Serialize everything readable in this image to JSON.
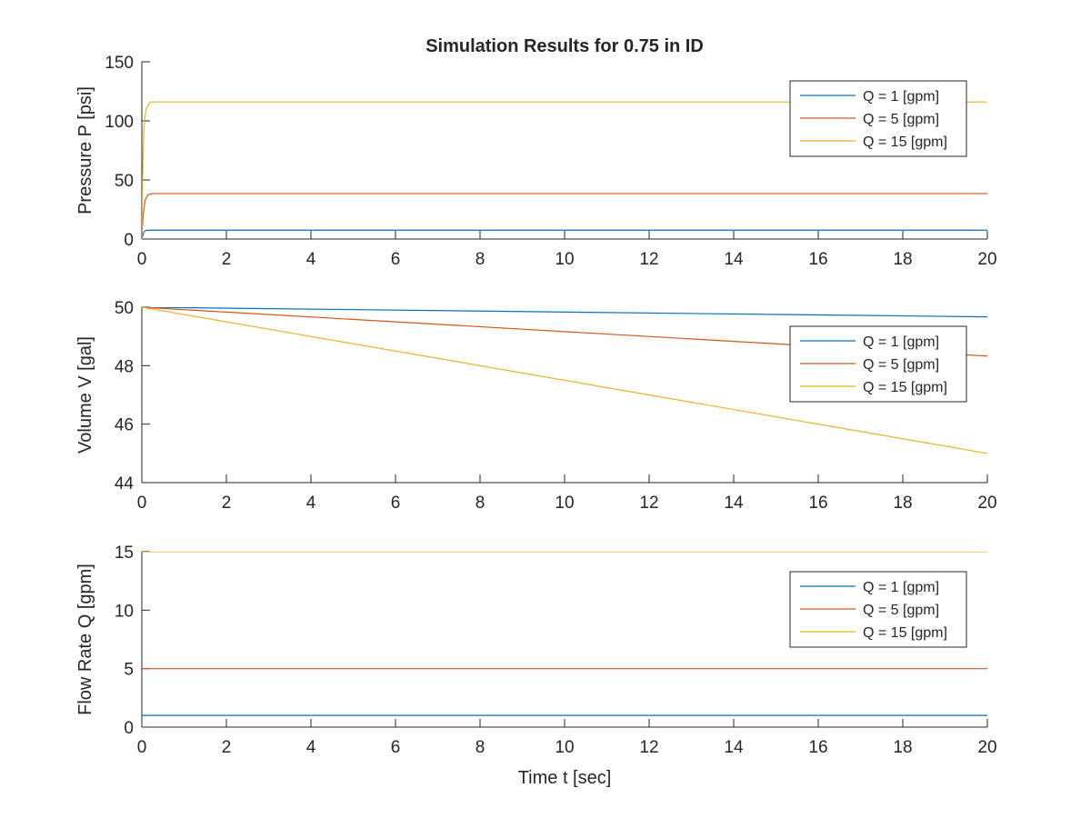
{
  "figure": {
    "title": "Simulation Results for 0.75 in ID"
  },
  "chart_data": [
    {
      "type": "line",
      "title": "Simulation Results for 0.75 in ID",
      "xlabel": "",
      "ylabel": "Pressure P [psi]",
      "xlim": [
        0,
        20
      ],
      "ylim": [
        0,
        150
      ],
      "xticks": [
        0,
        2,
        4,
        6,
        8,
        10,
        12,
        14,
        16,
        18,
        20
      ],
      "yticks": [
        0,
        50,
        100,
        150
      ],
      "grid": false,
      "legend": "top-right",
      "series": [
        {
          "name": "Q = 1 [gpm]",
          "color": "#0072BD",
          "x": [
            0,
            0.05,
            0.1,
            0.2,
            20
          ],
          "y": [
            0,
            6,
            7.3,
            7.5,
            7.5
          ]
        },
        {
          "name": "Q = 5 [gpm]",
          "color": "#D95319",
          "x": [
            0,
            0.03,
            0.08,
            0.15,
            0.25,
            20
          ],
          "y": [
            0,
            20,
            33,
            37.5,
            38.5,
            38.5
          ]
        },
        {
          "name": "Q = 15 [gpm]",
          "color": "#EDB120",
          "x": [
            0,
            0.02,
            0.05,
            0.1,
            0.2,
            20
          ],
          "y": [
            0,
            55,
            95,
            110,
            116,
            116
          ]
        }
      ]
    },
    {
      "type": "line",
      "title": "",
      "xlabel": "",
      "ylabel": "Volume V [gal]",
      "xlim": [
        0,
        20
      ],
      "ylim": [
        44,
        50
      ],
      "xticks": [
        0,
        2,
        4,
        6,
        8,
        10,
        12,
        14,
        16,
        18,
        20
      ],
      "yticks": [
        44,
        46,
        48,
        50
      ],
      "grid": false,
      "legend": "top-right",
      "series": [
        {
          "name": "Q = 1 [gpm]",
          "color": "#0072BD",
          "x": [
            0,
            20
          ],
          "y": [
            50,
            49.67
          ]
        },
        {
          "name": "Q = 5 [gpm]",
          "color": "#D95319",
          "x": [
            0,
            20
          ],
          "y": [
            50,
            48.33
          ]
        },
        {
          "name": "Q = 15 [gpm]",
          "color": "#EDB120",
          "x": [
            0,
            20
          ],
          "y": [
            50,
            45
          ]
        }
      ]
    },
    {
      "type": "line",
      "title": "",
      "xlabel": "Time t [sec]",
      "ylabel": "Flow Rate Q [gpm]",
      "xlim": [
        0,
        20
      ],
      "ylim": [
        0,
        15
      ],
      "xticks": [
        0,
        2,
        4,
        6,
        8,
        10,
        12,
        14,
        16,
        18,
        20
      ],
      "yticks": [
        0,
        5,
        10,
        15
      ],
      "grid": false,
      "legend": "top-right",
      "series": [
        {
          "name": "Q = 1 [gpm]",
          "color": "#0072BD",
          "x": [
            0,
            20
          ],
          "y": [
            1,
            1
          ]
        },
        {
          "name": "Q = 5 [gpm]",
          "color": "#D95319",
          "x": [
            0,
            20
          ],
          "y": [
            5,
            5
          ]
        },
        {
          "name": "Q = 15 [gpm]",
          "color": "#EDB120",
          "x": [
            0,
            20
          ],
          "y": [
            15,
            15
          ]
        }
      ]
    }
  ]
}
